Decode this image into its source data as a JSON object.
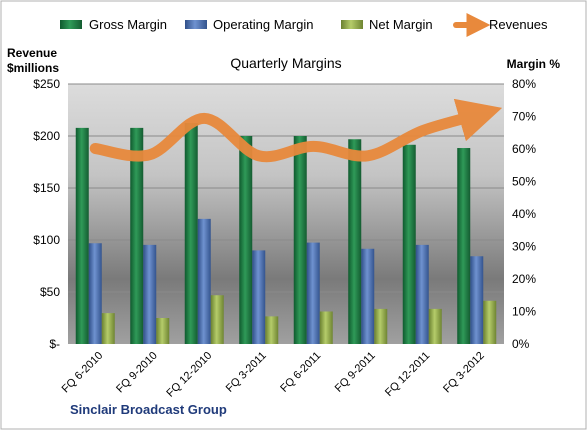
{
  "chart_data": {
    "type": "bar",
    "title": "Quarterly Margins",
    "company": "Sinclair Broadcast Group",
    "left_axis_label_line1": "Revenue",
    "left_axis_label_line2": "$millions",
    "right_axis_label": "Margin %",
    "categories": [
      "FQ 6-2010",
      "FQ 9-2010",
      "FQ 12-2010",
      "FQ 3-2011",
      "FQ 6-2011",
      "FQ 9-2011",
      "FQ 12-2011",
      "FQ 3-2012"
    ],
    "series": [
      {
        "name": "Gross Margin",
        "axis": "right",
        "color": "#1E7B45",
        "values": [
          66.5,
          66.5,
          68.0,
          64.0,
          64.0,
          63.0,
          61.3,
          60.3
        ]
      },
      {
        "name": "Operating Margin",
        "axis": "right",
        "color": "#4A6FB0",
        "values": [
          31.0,
          30.5,
          38.5,
          28.8,
          31.2,
          29.3,
          30.5,
          27.0
        ]
      },
      {
        "name": "Net Margin",
        "axis": "right",
        "color": "#8FA84A",
        "values": [
          9.5,
          8.0,
          15.0,
          8.5,
          10.0,
          10.8,
          10.8,
          13.3
        ]
      },
      {
        "name": "Revenues",
        "axis": "left",
        "type": "line",
        "color": "#E8893C",
        "values": [
          188,
          182,
          217,
          181,
          190,
          181,
          205,
          220
        ]
      }
    ],
    "left_axis": {
      "min": 0,
      "max": 250,
      "step": 50,
      "ticks": [
        "$-",
        "$50",
        "$100",
        "$150",
        "$200",
        "$250"
      ]
    },
    "right_axis": {
      "min": 0,
      "max": 80,
      "step": 10,
      "ticks": [
        "0%",
        "10%",
        "20%",
        "30%",
        "40%",
        "50%",
        "60%",
        "70%",
        "80%"
      ]
    },
    "legend": {
      "placement": "top"
    },
    "grid": true
  }
}
